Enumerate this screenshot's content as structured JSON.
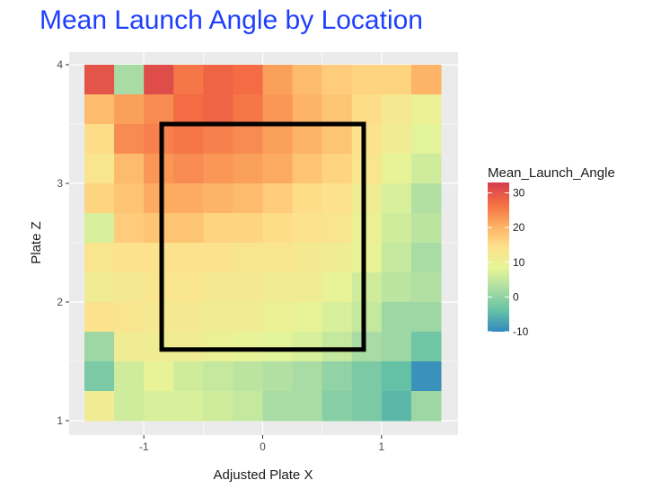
{
  "chart_data": {
    "type": "heatmap",
    "title": "Mean Launch Angle by Location",
    "xlabel": "Adjusted Plate X",
    "ylabel": "Plate Z",
    "xlim": [
      -1.5,
      1.5
    ],
    "ylim": [
      1.0,
      4.0
    ],
    "x_ticks": [
      "-1",
      "0",
      "1"
    ],
    "x_tick_values": [
      -1,
      0,
      1
    ],
    "y_ticks": [
      "1",
      "2",
      "3",
      "4"
    ],
    "y_tick_values": [
      1,
      2,
      3,
      4
    ],
    "grid": true,
    "cols": 12,
    "rows": 12,
    "values_top_to_bottom": [
      [
        30,
        2,
        31,
        26,
        28,
        27,
        22,
        19,
        17,
        16,
        16,
        20
      ],
      [
        19,
        22,
        24,
        27,
        28,
        26,
        23,
        20,
        18,
        15,
        12,
        10
      ],
      [
        15,
        24,
        25,
        26,
        25,
        24,
        22,
        20,
        18,
        14,
        11,
        8
      ],
      [
        13,
        19,
        23,
        24,
        23,
        22,
        21,
        18,
        16,
        13,
        9,
        6
      ],
      [
        16,
        18,
        21,
        21,
        20,
        19,
        17,
        15,
        14,
        11,
        7,
        3
      ],
      [
        7,
        17,
        18,
        18,
        16,
        16,
        15,
        14,
        13,
        10,
        6,
        4
      ],
      [
        13,
        14,
        14,
        14,
        14,
        13,
        13,
        12,
        11,
        9,
        5,
        2
      ],
      [
        11,
        12,
        13,
        13,
        12,
        12,
        11,
        11,
        9,
        6,
        4,
        3
      ],
      [
        14,
        13,
        12,
        12,
        11,
        11,
        10,
        9,
        7,
        5,
        1,
        1
      ],
      [
        1,
        11,
        11,
        11,
        10,
        9,
        8,
        7,
        5,
        2,
        1,
        -3
      ],
      [
        -2,
        6,
        9,
        6,
        5,
        4,
        3,
        2,
        0,
        -2,
        -4,
        -9
      ],
      [
        11,
        6,
        7,
        7,
        6,
        5,
        2,
        2,
        -1,
        -2,
        -5,
        1
      ]
    ],
    "strike_zone": {
      "x": [
        -0.85,
        0.85
      ],
      "z": [
        1.6,
        3.5
      ]
    },
    "legend": {
      "title": "Mean_Launch_Angle",
      "position": "right",
      "range": [
        -10,
        33
      ],
      "ticks": [
        "30",
        "20",
        "10",
        "0",
        "-10"
      ],
      "tick_values": [
        30,
        20,
        10,
        0,
        -10
      ],
      "colors": [
        "#3288bd",
        "#66c2a5",
        "#abdda4",
        "#e6f598",
        "#fee08b",
        "#fdae61",
        "#f46d43",
        "#d53e4f"
      ]
    }
  }
}
